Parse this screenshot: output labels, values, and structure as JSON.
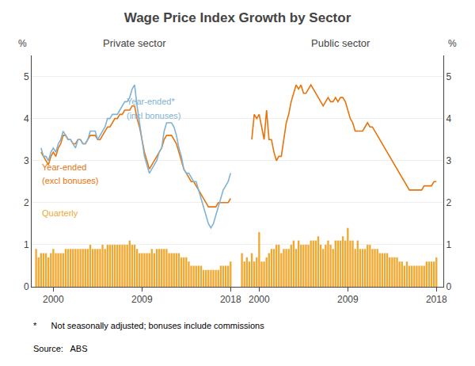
{
  "title": "Wage Price Index Growth by Sector",
  "annotations": [
    "*      Not seasonally adjusted; bonuses include commissions",
    "Source:   ABS"
  ],
  "chart_data": [
    {
      "type": "bar",
      "title": "Private sector",
      "ylabel": "%",
      "xlim": [
        1997.8,
        2018.7
      ],
      "xticks": [
        2000,
        2009,
        2018
      ],
      "ylim": [
        0,
        5.5
      ],
      "yticks": [
        0,
        1,
        2,
        3,
        4,
        5
      ],
      "grid": true,
      "series": [
        {
          "type": "bar",
          "color": "#f0a830",
          "x": [
            1998.25,
            1998.5,
            1998.75,
            1999.0,
            1999.25,
            1999.5,
            1999.75,
            2000.0,
            2000.25,
            2000.5,
            2000.75,
            2001.0,
            2001.25,
            2001.5,
            2001.75,
            2002.0,
            2002.25,
            2002.5,
            2002.75,
            2003.0,
            2003.25,
            2003.5,
            2003.75,
            2004.0,
            2004.25,
            2004.5,
            2004.75,
            2005.0,
            2005.25,
            2005.5,
            2005.75,
            2006.0,
            2006.25,
            2006.5,
            2006.75,
            2007.0,
            2007.25,
            2007.5,
            2007.75,
            2008.0,
            2008.25,
            2008.5,
            2008.75,
            2009.0,
            2009.25,
            2009.5,
            2009.75,
            2010.0,
            2010.25,
            2010.5,
            2010.75,
            2011.0,
            2011.25,
            2011.5,
            2011.75,
            2012.0,
            2012.25,
            2012.5,
            2012.75,
            2013.0,
            2013.25,
            2013.5,
            2013.75,
            2014.0,
            2014.25,
            2014.5,
            2014.75,
            2015.0,
            2015.25,
            2015.5,
            2015.75,
            2016.0,
            2016.25,
            2016.5,
            2016.75,
            2017.0,
            2017.25,
            2017.5,
            2017.75,
            2018.0
          ],
          "values": [
            0.9,
            0.7,
            0.8,
            0.8,
            0.8,
            0.7,
            0.8,
            0.9,
            0.8,
            0.8,
            0.8,
            0.8,
            0.9,
            0.9,
            0.9,
            0.9,
            0.9,
            0.9,
            0.9,
            0.9,
            0.9,
            0.9,
            1.0,
            0.9,
            0.9,
            0.9,
            0.9,
            1.0,
            0.9,
            1.0,
            1.0,
            1.0,
            1.0,
            1.0,
            1.0,
            1.0,
            1.0,
            1.0,
            1.1,
            1.0,
            1.0,
            0.9,
            0.8,
            0.8,
            0.8,
            0.8,
            0.8,
            0.9,
            0.8,
            0.9,
            0.9,
            0.9,
            0.9,
            0.9,
            0.8,
            0.8,
            0.8,
            0.8,
            0.8,
            0.7,
            0.7,
            0.7,
            0.6,
            0.5,
            0.5,
            0.5,
            0.5,
            0.5,
            0.4,
            0.4,
            0.4,
            0.4,
            0.4,
            0.4,
            0.4,
            0.5,
            0.5,
            0.5,
            0.5,
            0.6
          ]
        },
        {
          "type": "line",
          "color": "#e8730a",
          "x": [
            1998.75,
            1999.0,
            1999.25,
            1999.5,
            1999.75,
            2000.0,
            2000.25,
            2000.5,
            2000.75,
            2001.0,
            2001.25,
            2001.5,
            2001.75,
            2002.0,
            2002.25,
            2002.5,
            2002.75,
            2003.0,
            2003.25,
            2003.5,
            2003.75,
            2004.0,
            2004.25,
            2004.5,
            2004.75,
            2005.0,
            2005.25,
            2005.5,
            2005.75,
            2006.0,
            2006.25,
            2006.5,
            2006.75,
            2007.0,
            2007.25,
            2007.5,
            2007.75,
            2008.0,
            2008.25,
            2008.5,
            2008.75,
            2009.0,
            2009.25,
            2009.5,
            2009.75,
            2010.0,
            2010.25,
            2010.5,
            2010.75,
            2011.0,
            2011.25,
            2011.5,
            2011.75,
            2012.0,
            2012.25,
            2012.5,
            2012.75,
            2013.0,
            2013.25,
            2013.5,
            2013.75,
            2014.0,
            2014.25,
            2014.5,
            2014.75,
            2015.0,
            2015.25,
            2015.5,
            2015.75,
            2016.0,
            2016.25,
            2016.5,
            2016.75,
            2017.0,
            2017.25,
            2017.5,
            2017.75,
            2018.0
          ],
          "values": [
            3.2,
            3.1,
            3.0,
            2.9,
            3.1,
            3.2,
            3.1,
            3.3,
            3.4,
            3.6,
            3.6,
            3.5,
            3.5,
            3.4,
            3.4,
            3.5,
            3.5,
            3.4,
            3.4,
            3.5,
            3.6,
            3.6,
            3.6,
            3.5,
            3.5,
            3.6,
            3.7,
            3.8,
            3.8,
            3.9,
            4.0,
            4.0,
            4.1,
            4.1,
            4.2,
            4.2,
            4.2,
            4.3,
            4.3,
            4.0,
            3.8,
            3.5,
            3.2,
            3.0,
            2.8,
            2.9,
            3.0,
            3.1,
            3.2,
            3.3,
            3.5,
            3.6,
            3.6,
            3.6,
            3.5,
            3.4,
            3.2,
            3.0,
            2.8,
            2.7,
            2.6,
            2.5,
            2.5,
            2.4,
            2.3,
            2.2,
            2.1,
            2.0,
            1.9,
            1.9,
            1.9,
            1.9,
            2.0,
            2.0,
            2.0,
            2.0,
            2.0,
            2.1
          ]
        },
        {
          "type": "line",
          "color": "#7fb3d3",
          "x": [
            1998.75,
            1999.0,
            1999.25,
            1999.5,
            1999.75,
            2000.0,
            2000.25,
            2000.5,
            2000.75,
            2001.0,
            2001.25,
            2001.5,
            2001.75,
            2002.0,
            2002.25,
            2002.5,
            2002.75,
            2003.0,
            2003.25,
            2003.5,
            2003.75,
            2004.0,
            2004.25,
            2004.5,
            2004.75,
            2005.0,
            2005.25,
            2005.5,
            2005.75,
            2006.0,
            2006.25,
            2006.5,
            2006.75,
            2007.0,
            2007.25,
            2007.5,
            2007.75,
            2008.0,
            2008.25,
            2008.5,
            2008.75,
            2009.0,
            2009.25,
            2009.5,
            2009.75,
            2010.0,
            2010.25,
            2010.5,
            2010.75,
            2011.0,
            2011.25,
            2011.5,
            2011.75,
            2012.0,
            2012.25,
            2012.5,
            2012.75,
            2013.0,
            2013.25,
            2013.5,
            2013.75,
            2014.0,
            2014.25,
            2014.5,
            2014.75,
            2015.0,
            2015.25,
            2015.5,
            2015.75,
            2016.0,
            2016.25,
            2016.5,
            2016.75,
            2017.0,
            2017.25,
            2017.5,
            2017.75,
            2018.0
          ],
          "values": [
            3.3,
            3.1,
            3.1,
            3.0,
            3.2,
            3.3,
            3.2,
            3.4,
            3.5,
            3.7,
            3.6,
            3.5,
            3.5,
            3.4,
            3.3,
            3.5,
            3.5,
            3.4,
            3.4,
            3.5,
            3.7,
            3.7,
            3.7,
            3.5,
            3.6,
            3.7,
            3.8,
            4.0,
            4.0,
            4.1,
            4.1,
            4.1,
            4.2,
            4.3,
            4.4,
            4.4,
            4.5,
            4.7,
            4.8,
            4.3,
            3.9,
            3.5,
            3.1,
            2.9,
            2.7,
            2.8,
            2.9,
            3.0,
            3.2,
            3.3,
            3.7,
            3.9,
            3.9,
            3.9,
            3.8,
            3.6,
            3.3,
            3.1,
            2.8,
            2.7,
            2.7,
            2.6,
            2.5,
            2.5,
            2.3,
            2.1,
            1.9,
            1.7,
            1.5,
            1.4,
            1.5,
            1.7,
            1.9,
            2.1,
            2.3,
            2.4,
            2.5,
            2.7
          ]
        }
      ],
      "annotations": [
        {
          "text": "Year-ended*",
          "x": 2007.3,
          "y": 4.25,
          "color": "#7fb3d3"
        },
        {
          "text": "(incl bonuses)",
          "x": 2007.3,
          "y": 3.92,
          "color": "#7fb3d3"
        },
        {
          "text": "Year-ended",
          "x": 1998.7,
          "y": 2.7,
          "color": "#e8730a"
        },
        {
          "text": "(excl bonuses)",
          "x": 1998.7,
          "y": 2.37,
          "color": "#e8730a"
        },
        {
          "text": "Quarterly",
          "x": 1998.7,
          "y": 1.6,
          "color": "#f0a830"
        }
      ]
    },
    {
      "type": "bar",
      "title": "Public sector",
      "ylabel": "%",
      "xlim": [
        1997.8,
        2018.7
      ],
      "xticks": [
        2000,
        2009,
        2018
      ],
      "ylim": [
        0,
        5.5
      ],
      "yticks": [
        0,
        1,
        2,
        3,
        4,
        5
      ],
      "grid": true,
      "series": [
        {
          "type": "bar",
          "color": "#f0a830",
          "x": [
            1998.25,
            1998.5,
            1998.75,
            1999.0,
            1999.25,
            1999.5,
            1999.75,
            2000.0,
            2000.25,
            2000.5,
            2000.75,
            2001.0,
            2001.25,
            2001.5,
            2001.75,
            2002.0,
            2002.25,
            2002.5,
            2002.75,
            2003.0,
            2003.25,
            2003.5,
            2003.75,
            2004.0,
            2004.25,
            2004.5,
            2004.75,
            2005.0,
            2005.25,
            2005.5,
            2005.75,
            2006.0,
            2006.25,
            2006.5,
            2006.75,
            2007.0,
            2007.25,
            2007.5,
            2007.75,
            2008.0,
            2008.25,
            2008.5,
            2008.75,
            2009.0,
            2009.25,
            2009.5,
            2009.75,
            2010.0,
            2010.25,
            2010.5,
            2010.75,
            2011.0,
            2011.25,
            2011.5,
            2011.75,
            2012.0,
            2012.25,
            2012.5,
            2012.75,
            2013.0,
            2013.25,
            2013.5,
            2013.75,
            2014.0,
            2014.25,
            2014.5,
            2014.75,
            2015.0,
            2015.25,
            2015.5,
            2015.75,
            2016.0,
            2016.25,
            2016.5,
            2016.75,
            2017.0,
            2017.25,
            2017.5,
            2017.75,
            2018.0
          ],
          "values": [
            0.8,
            0.6,
            0.7,
            0.6,
            0.8,
            0.6,
            0.7,
            1.3,
            0.6,
            0.6,
            0.7,
            0.8,
            0.9,
            0.9,
            1.0,
            1.0,
            0.8,
            0.9,
            0.9,
            0.9,
            1.0,
            1.1,
            0.9,
            1.1,
            1.0,
            1.0,
            1.0,
            1.0,
            1.1,
            1.1,
            1.1,
            1.2,
            1.0,
            0.9,
            1.0,
            1.1,
            1.0,
            0.9,
            1.1,
            1.1,
            1.1,
            1.2,
            1.1,
            1.4,
            1.1,
            1.1,
            0.9,
            1.1,
            0.9,
            0.9,
            0.9,
            1.0,
            1.0,
            0.9,
            0.9,
            0.9,
            0.8,
            0.8,
            0.8,
            0.8,
            0.7,
            0.7,
            0.7,
            0.7,
            0.6,
            0.6,
            0.5,
            0.6,
            0.5,
            0.5,
            0.5,
            0.5,
            0.5,
            0.5,
            0.5,
            0.6,
            0.6,
            0.6,
            0.6,
            0.7
          ]
        },
        {
          "type": "line",
          "color": "#e8730a",
          "x": [
            1999.25,
            1999.5,
            1999.75,
            2000.0,
            2000.25,
            2000.5,
            2000.75,
            2001.0,
            2001.25,
            2001.5,
            2001.75,
            2002.0,
            2002.25,
            2002.5,
            2002.75,
            2003.0,
            2003.25,
            2003.5,
            2003.75,
            2004.0,
            2004.25,
            2004.5,
            2004.75,
            2005.0,
            2005.25,
            2005.5,
            2005.75,
            2006.0,
            2006.25,
            2006.5,
            2006.75,
            2007.0,
            2007.25,
            2007.5,
            2007.75,
            2008.0,
            2008.25,
            2008.5,
            2008.75,
            2009.0,
            2009.25,
            2009.5,
            2009.75,
            2010.0,
            2010.25,
            2010.5,
            2010.75,
            2011.0,
            2011.25,
            2011.5,
            2011.75,
            2012.0,
            2012.25,
            2012.5,
            2012.75,
            2013.0,
            2013.25,
            2013.5,
            2013.75,
            2014.0,
            2014.25,
            2014.5,
            2014.75,
            2015.0,
            2015.25,
            2015.5,
            2015.75,
            2016.0,
            2016.25,
            2016.5,
            2016.75,
            2017.0,
            2017.25,
            2017.5,
            2017.75,
            2018.0
          ],
          "values": [
            3.5,
            4.1,
            4.0,
            4.1,
            3.8,
            3.5,
            4.2,
            3.5,
            3.5,
            3.2,
            3.0,
            3.1,
            3.1,
            3.5,
            3.9,
            4.1,
            4.4,
            4.6,
            4.8,
            4.7,
            4.8,
            4.6,
            4.6,
            4.7,
            4.8,
            4.7,
            4.6,
            4.5,
            4.4,
            4.3,
            4.4,
            4.5,
            4.4,
            4.4,
            4.5,
            4.4,
            4.5,
            4.5,
            4.4,
            4.2,
            4.0,
            3.9,
            3.7,
            3.7,
            3.7,
            3.7,
            3.8,
            3.9,
            3.8,
            3.8,
            3.7,
            3.6,
            3.5,
            3.4,
            3.3,
            3.2,
            3.1,
            3.0,
            2.9,
            2.8,
            2.7,
            2.6,
            2.5,
            2.4,
            2.3,
            2.3,
            2.3,
            2.3,
            2.3,
            2.3,
            2.4,
            2.4,
            2.4,
            2.4,
            2.5,
            2.5
          ]
        }
      ]
    }
  ]
}
